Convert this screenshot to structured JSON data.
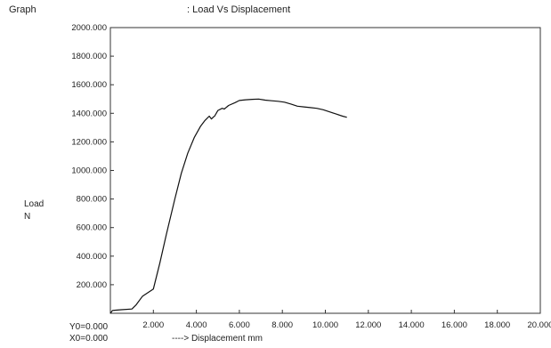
{
  "header": {
    "graph_label": "Graph",
    "graph_title": ": Load Vs Displacement"
  },
  "chart_data": {
    "type": "line",
    "title": "Load Vs Displacement",
    "xlabel": "----> Displacement  mm",
    "ylabel": [
      "Load",
      "N"
    ],
    "xlim": [
      0,
      20
    ],
    "ylim": [
      0,
      2000
    ],
    "x_ticks": [
      "2.000",
      "4.000",
      "6.000",
      "8.000",
      "10.000",
      "12.000",
      "14.000",
      "16.000",
      "18.000",
      "20.000"
    ],
    "y_ticks": [
      "200.000",
      "400.000",
      "600.000",
      "800.000",
      "1000.000",
      "1200.000",
      "1400.000",
      "1600.000",
      "1800.000",
      "2000.000"
    ],
    "origin_labels": {
      "y0": "Y0=0.000",
      "x0": "X0=0.000"
    },
    "grid": false,
    "series": [
      {
        "color": "#111111",
        "x": [
          0.0,
          0.1,
          0.5,
          1.0,
          1.2,
          1.5,
          2.0,
          2.3,
          2.6,
          3.0,
          3.3,
          3.6,
          3.9,
          4.2,
          4.4,
          4.6,
          4.7,
          4.8,
          4.85,
          5.0,
          5.2,
          5.3,
          5.5,
          5.8,
          6.0,
          6.3,
          6.6,
          6.9,
          7.2,
          7.5,
          7.8,
          8.1,
          8.4,
          8.7,
          9.0,
          9.3,
          9.6,
          9.9,
          10.2,
          10.5,
          10.8,
          11.0
        ],
        "y": [
          0,
          20,
          25,
          30,
          60,
          120,
          170,
          350,
          550,
          800,
          980,
          1120,
          1230,
          1310,
          1350,
          1380,
          1360,
          1375,
          1380,
          1420,
          1435,
          1430,
          1455,
          1475,
          1490,
          1495,
          1498,
          1500,
          1492,
          1488,
          1484,
          1478,
          1465,
          1450,
          1445,
          1440,
          1435,
          1425,
          1410,
          1395,
          1380,
          1372
        ]
      }
    ]
  }
}
